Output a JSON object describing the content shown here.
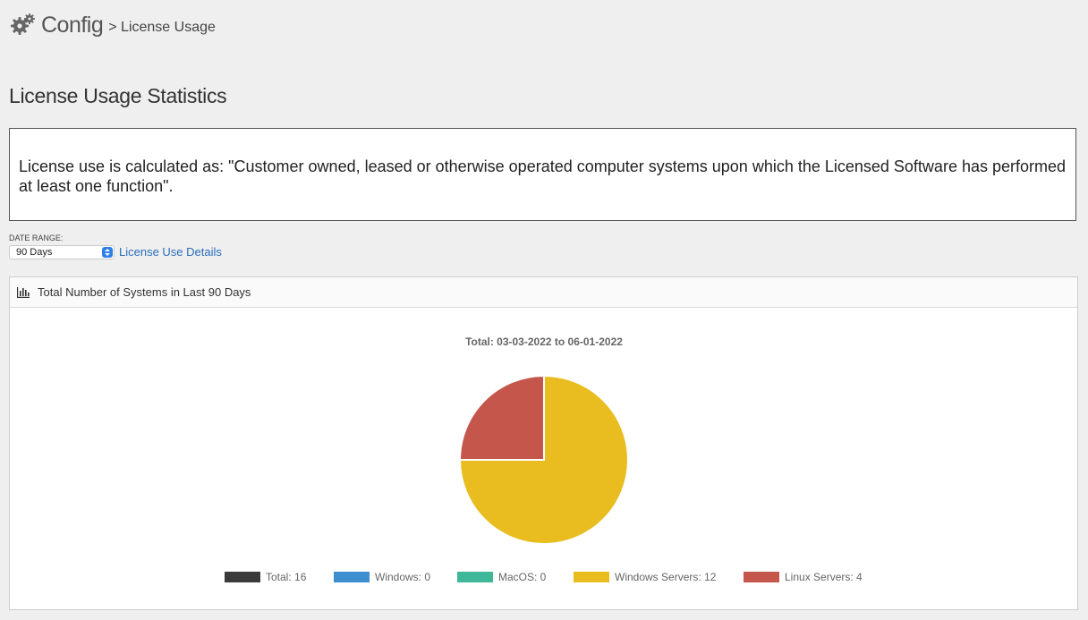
{
  "header": {
    "section": "Config",
    "breadcrumb": "> License Usage"
  },
  "page_title": "License Usage Statistics",
  "notice": "License use is calculated as: \"Customer owned, leased or otherwise operated computer systems upon which the Licensed Software has performed at least one function\".",
  "date_range": {
    "label": "DATE RANGE:",
    "selected": "90 Days",
    "details_link": "License Use Details"
  },
  "panel": {
    "title": "Total Number of Systems in Last 90 Days"
  },
  "chart_data": {
    "type": "pie",
    "title": "Total: 03-03-2022 to 06-01-2022",
    "total": 16,
    "slices": [
      {
        "name": "Windows",
        "value": 0,
        "color": "#3d8fd1"
      },
      {
        "name": "MacOS",
        "value": 0,
        "color": "#3fb89a"
      },
      {
        "name": "Windows Servers",
        "value": 12,
        "color": "#e9bd20"
      },
      {
        "name": "Linux Servers",
        "value": 4,
        "color": "#c5564c"
      }
    ],
    "legend": [
      {
        "label": "Total: 16",
        "color": "#3a3a3a"
      },
      {
        "label": "Windows: 0",
        "color": "#3d8fd1"
      },
      {
        "label": "MacOS: 0",
        "color": "#3fb89a"
      },
      {
        "label": "Windows Servers: 12",
        "color": "#e9bd20"
      },
      {
        "label": "Linux Servers: 4",
        "color": "#c5564c"
      }
    ],
    "legend_position": "bottom"
  }
}
